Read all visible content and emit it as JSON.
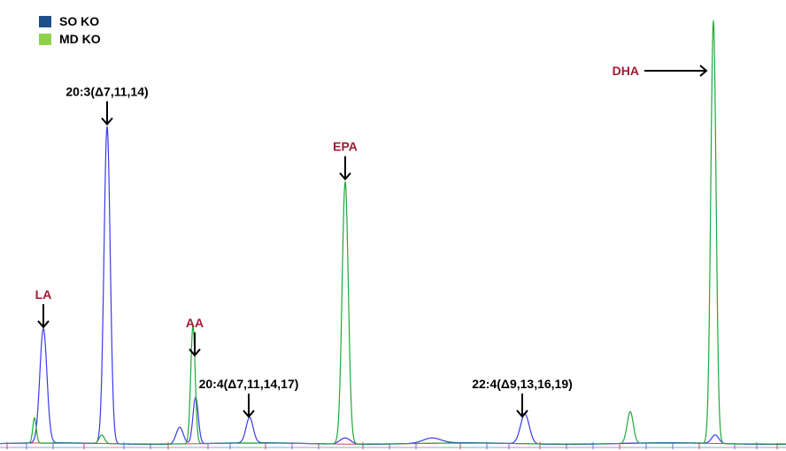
{
  "legend": {
    "items": [
      {
        "label": "SO KO",
        "color": "#1f4f8a"
      },
      {
        "label": "MD KO",
        "color": "#8ed24c"
      }
    ]
  },
  "colors": {
    "so_trace": "#3a3ae8",
    "md_trace": "#22a83a",
    "baseline_red": "#e0404a",
    "name_label": "#9e1b32",
    "formula_label": "#000000"
  },
  "chart_data": {
    "type": "line",
    "xlim": [
      0,
      888
    ],
    "ylim": [
      0,
      100
    ],
    "grid": false,
    "legend_position": "top-left",
    "series": [
      {
        "name": "SO KO",
        "color": "#3a3ae8",
        "peaks": [
          {
            "x": 49,
            "height": 27,
            "width": 4
          },
          {
            "x": 121,
            "height": 75,
            "width": 3.5
          },
          {
            "x": 203,
            "height": 4,
            "width": 4
          },
          {
            "x": 221,
            "height": 11,
            "width": 3
          },
          {
            "x": 282,
            "height": 6,
            "width": 4
          },
          {
            "x": 390,
            "height": 1.5,
            "width": 6
          },
          {
            "x": 488,
            "height": 1.2,
            "width": 10
          },
          {
            "x": 593,
            "height": 7,
            "width": 5
          },
          {
            "x": 808,
            "height": 2,
            "width": 4
          }
        ]
      },
      {
        "name": "MD KO",
        "color": "#22a83a",
        "peaks": [
          {
            "x": 39,
            "height": 6,
            "width": 2
          },
          {
            "x": 115,
            "height": 2,
            "width": 3
          },
          {
            "x": 218,
            "height": 28,
            "width": 2.5
          },
          {
            "x": 390,
            "height": 62,
            "width": 3.5
          },
          {
            "x": 712,
            "height": 7.5,
            "width": 3.5
          },
          {
            "x": 806,
            "height": 100,
            "width": 3
          }
        ]
      }
    ],
    "annotations": [
      {
        "text": "LA",
        "style": "name",
        "x": 49,
        "direction": "down"
      },
      {
        "text": "20:3(Δ7,11,14)",
        "style": "formula",
        "x": 121,
        "direction": "down"
      },
      {
        "text": "AA",
        "style": "name",
        "x": 220,
        "direction": "down"
      },
      {
        "text": "20:4(Δ7,11,14,17)",
        "style": "formula",
        "x": 281,
        "direction": "down"
      },
      {
        "text": "EPA",
        "style": "name",
        "x": 390,
        "direction": "down"
      },
      {
        "text": "22:4(Δ9,13,16,19)",
        "style": "formula",
        "x": 590,
        "direction": "down"
      },
      {
        "text": "DHA",
        "style": "name",
        "x": 798,
        "direction": "right"
      }
    ]
  }
}
